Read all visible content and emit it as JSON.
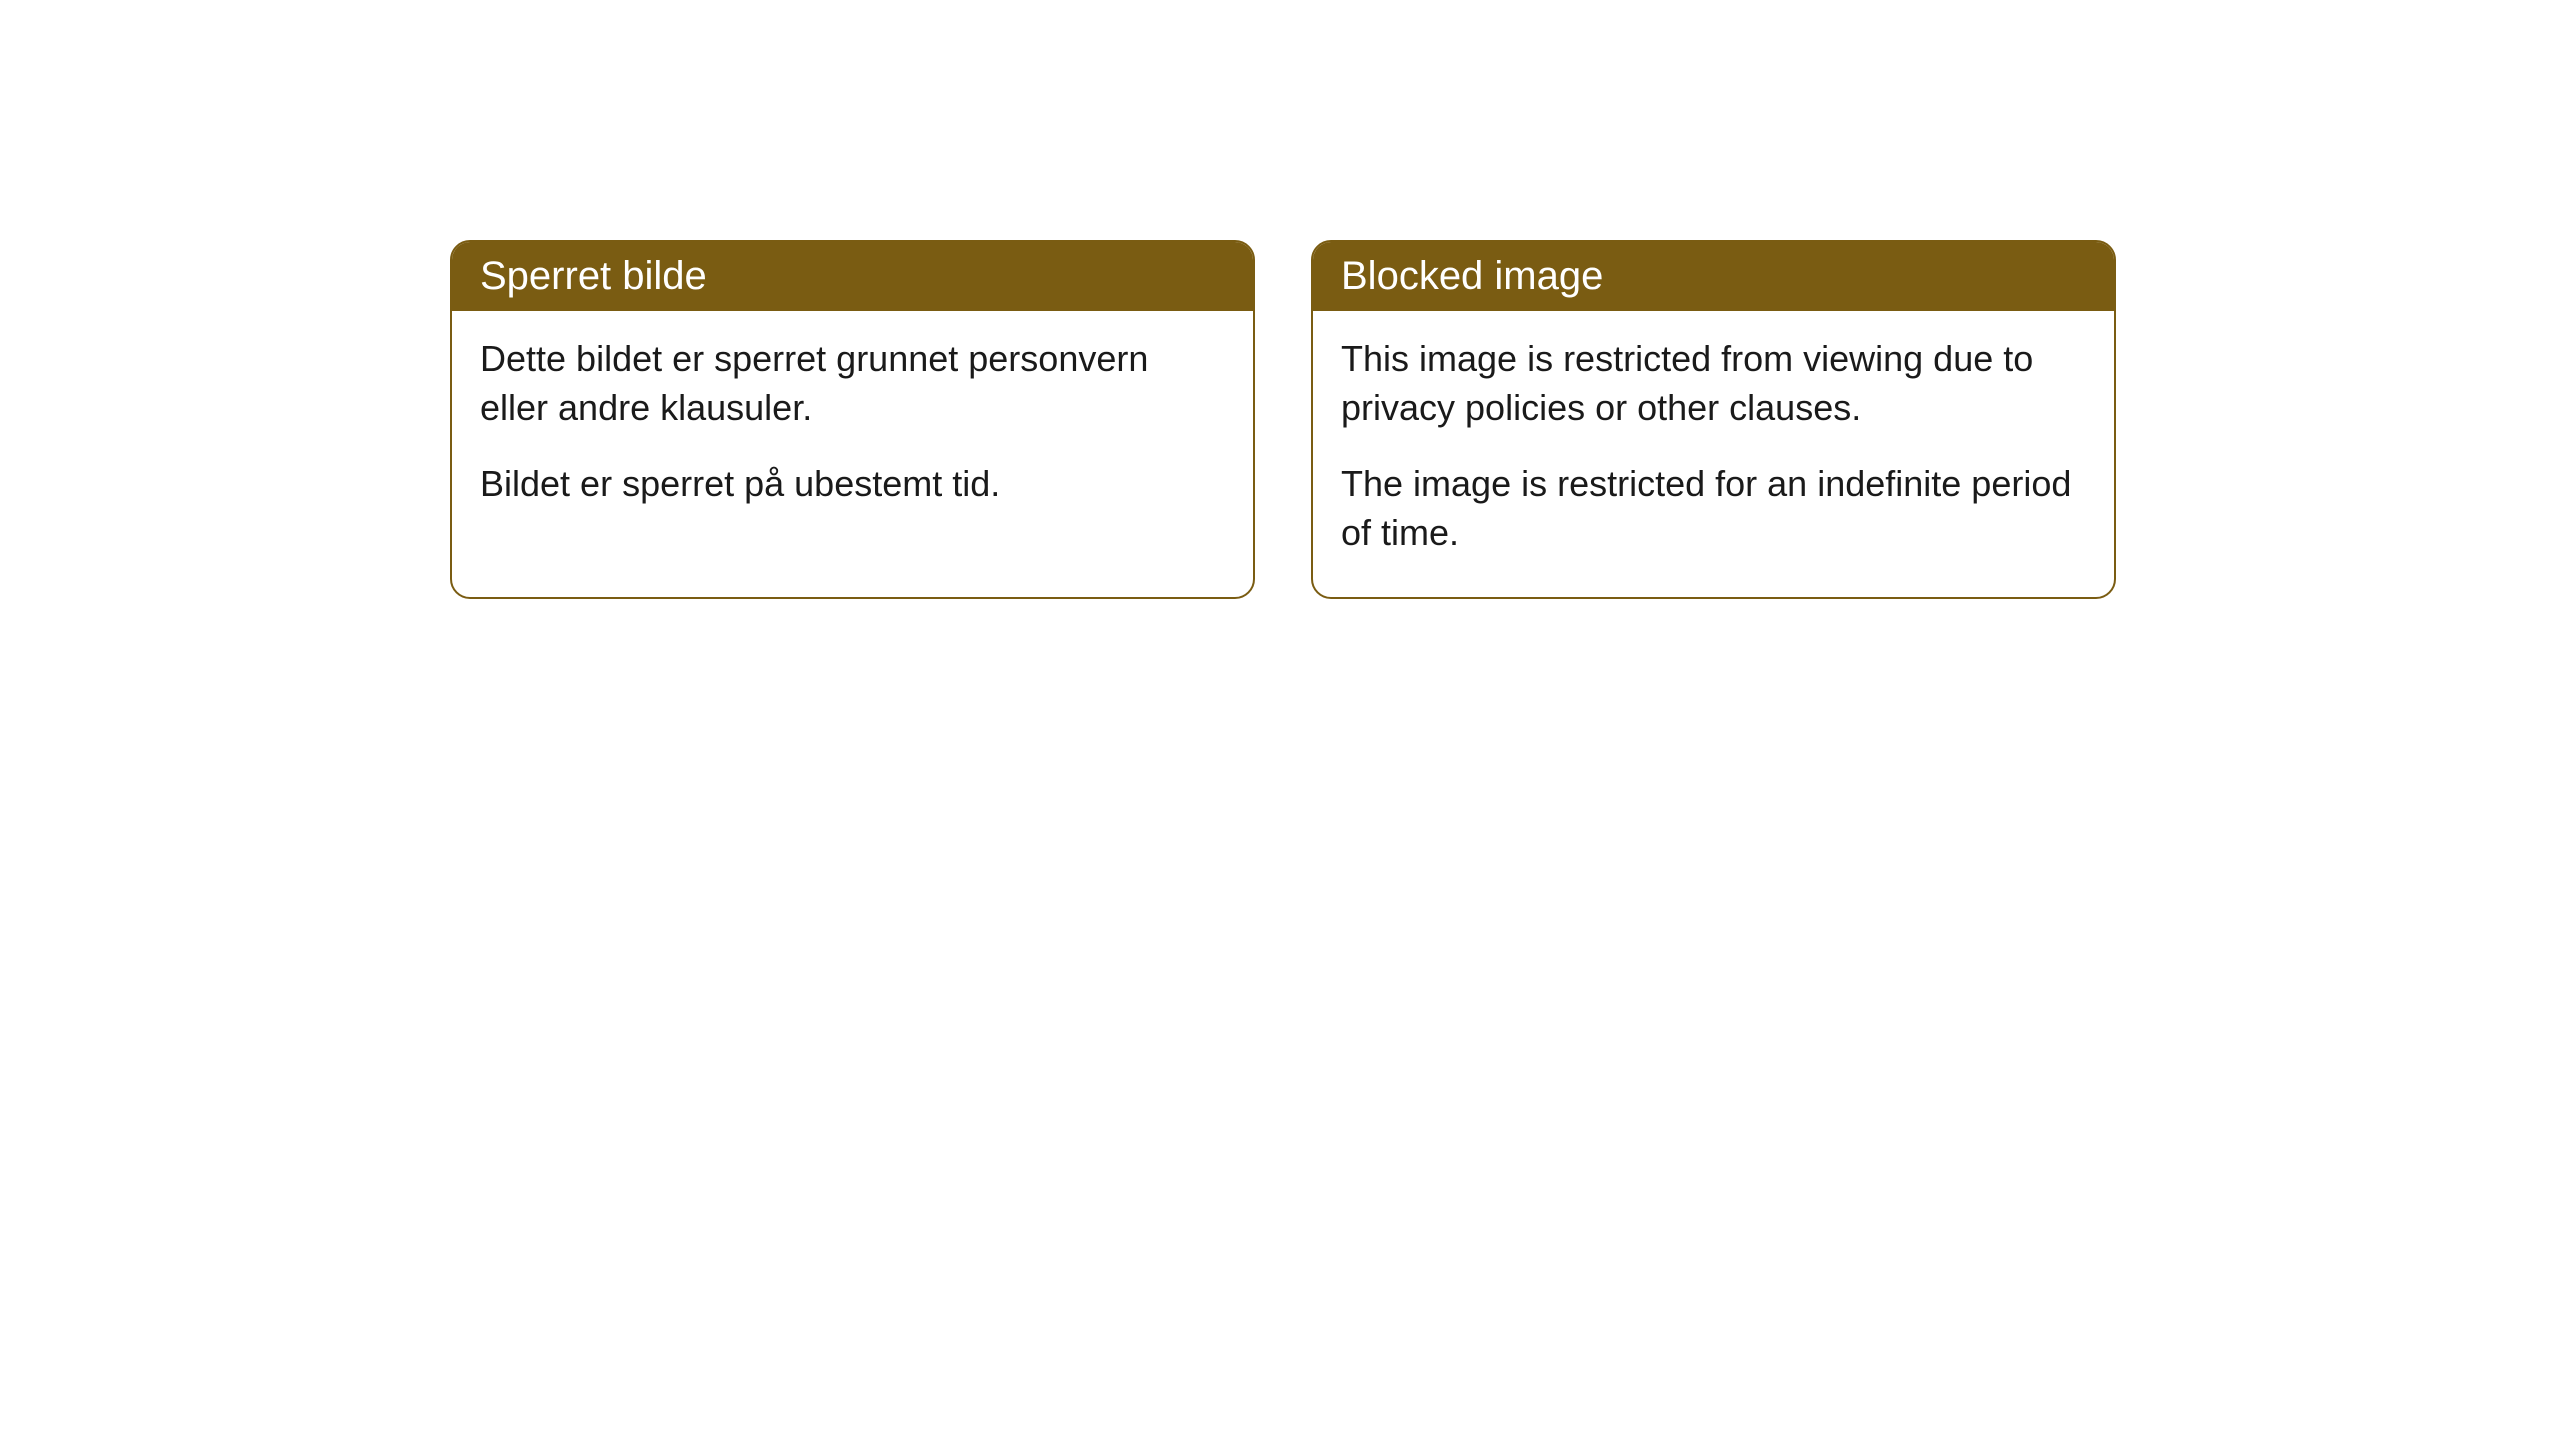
{
  "cards": [
    {
      "title": "Sperret bilde",
      "paragraph1": "Dette bildet er sperret grunnet personvern eller andre klausuler.",
      "paragraph2": "Bildet er sperret på ubestemt tid."
    },
    {
      "title": "Blocked image",
      "paragraph1": "This image is restricted from viewing due to privacy policies or other clauses.",
      "paragraph2": "The image is restricted for an indefinite period of time."
    }
  ],
  "styling": {
    "header_bg_color": "#7a5c12",
    "header_text_color": "#ffffff",
    "border_color": "#7a5c12",
    "body_bg_color": "#ffffff",
    "body_text_color": "#1a1a1a",
    "border_radius": 20,
    "title_fontsize": 40,
    "body_fontsize": 36
  }
}
